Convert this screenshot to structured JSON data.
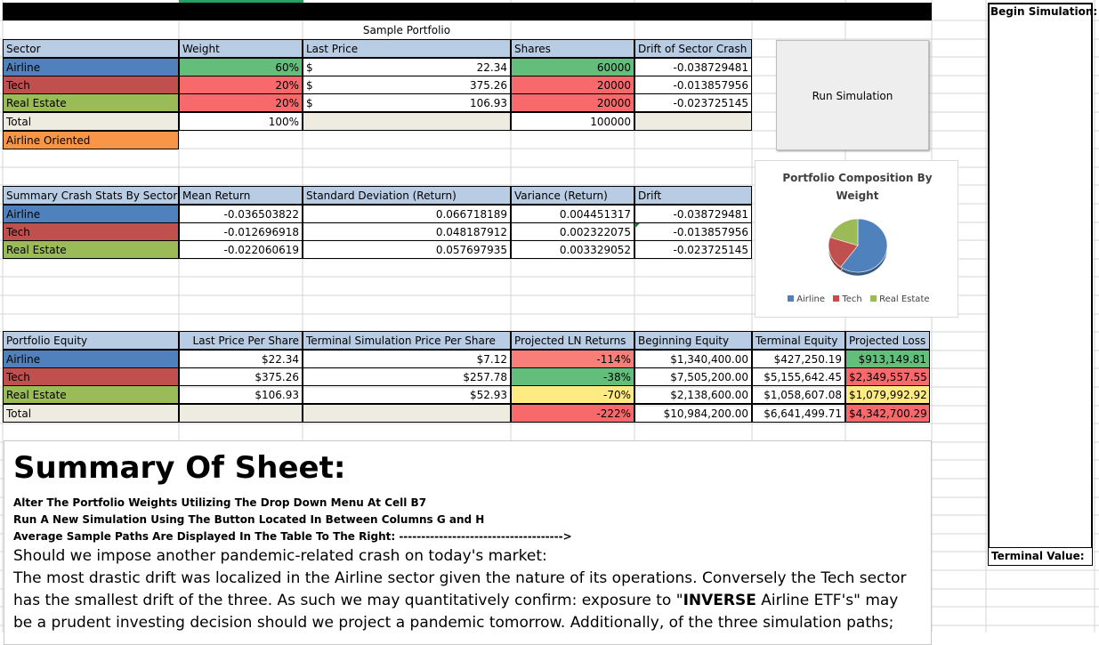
{
  "sheet": {
    "title": "Sample Portfolio"
  },
  "portfolio": {
    "headers": [
      "Sector",
      "Weight",
      "Last Price",
      "Shares",
      "Drift of Sector Crash"
    ],
    "currency_symbol": "$",
    "rows": [
      {
        "sector": "Airline",
        "weight": "60%",
        "price": "22.34",
        "shares": "60000",
        "drift": "-0.038729481"
      },
      {
        "sector": "Tech",
        "weight": "20%",
        "price": "375.26",
        "shares": "20000",
        "drift": "-0.013857956"
      },
      {
        "sector": "Real Estate",
        "weight": "20%",
        "price": "106.93",
        "shares": "20000",
        "drift": "-0.023725145"
      }
    ],
    "total": {
      "label": "Total",
      "weight": "100%",
      "shares": "100000"
    },
    "dropdown_value": "Airline Oriented"
  },
  "run_button": {
    "label": "Run Simulation"
  },
  "pie_chart": {
    "title": "Portfolio Composition By Weight",
    "legend": [
      "Airline",
      "Tech",
      "Real Estate"
    ]
  },
  "chart_data": {
    "type": "pie",
    "title": "Portfolio Composition By Weight",
    "categories": [
      "Airline",
      "Tech",
      "Real Estate"
    ],
    "values": [
      60,
      20,
      20
    ],
    "colors": [
      "#4f81bd",
      "#c0504d",
      "#9bbb59"
    ],
    "legend_position": "bottom"
  },
  "crash_stats": {
    "headers": [
      "Summary Crash Stats By Sector",
      "Mean Return",
      "Standard Deviation (Return)",
      "Variance (Return)",
      "Drift"
    ],
    "rows": [
      {
        "sector": "Airline",
        "mean": "-0.036503822",
        "std": "0.066718189",
        "var": "0.004451317",
        "drift": "-0.038729481"
      },
      {
        "sector": "Tech",
        "mean": "-0.012696918",
        "std": "0.048187912",
        "var": "0.002322075",
        "drift": "-0.013857956"
      },
      {
        "sector": "Real Estate",
        "mean": "-0.022060619",
        "std": "0.057697935",
        "var": "0.003329052",
        "drift": "-0.023725145"
      }
    ]
  },
  "equity": {
    "headers": [
      "Portfolio Equity",
      "Last Price Per Share",
      "Terminal Simulation Price Per Share",
      "Projected LN Returns",
      "Beginning Equity",
      "Terminal Equity",
      "Projected Loss"
    ],
    "rows": [
      {
        "sector": "Airline",
        "last": "$22.34",
        "terminal_price": "$7.12",
        "ln": "-114%",
        "begin": "$1,340,400.00",
        "terminal_eq": "$427,250.19",
        "loss": "$913,149.81"
      },
      {
        "sector": "Tech",
        "last": "$375.26",
        "terminal_price": "$257.78",
        "ln": "-38%",
        "begin": "$7,505,200.00",
        "terminal_eq": "$5,155,642.45",
        "loss": "$2,349,557.55"
      },
      {
        "sector": "Real Estate",
        "last": "$106.93",
        "terminal_price": "$52.93",
        "ln": "-70%",
        "begin": "$2,138,600.00",
        "terminal_eq": "$1,058,607.08",
        "loss": "$1,079,992.92"
      }
    ],
    "total": {
      "label": "Total",
      "ln": "-222%",
      "begin": "$10,984,200.00",
      "terminal_eq": "$6,641,499.71",
      "loss": "$4,342,700.29"
    }
  },
  "summary": {
    "heading": "Summary Of Sheet:",
    "bold_lines": [
      "Alter The Portfolio Weights Utilizing The Drop Down Menu At Cell B7",
      "Run A New Simulation Using The Button Located In Between Columns G and H",
      "Average Sample Paths Are Displayed In The Table To The Right: ------------------------------------->"
    ],
    "para_line1": "Should we impose another pandemic-related crash on today's market:",
    "para_line2": "The most drastic drift was localized in the Airline sector given the nature of its operations. Conversely the Tech sector",
    "para_line3_pre": "has the smallest drift of the three. As such we may quantitatively confirm: exposure to \"",
    "para_line3_bold": "INVERSE",
    "para_line3_post": " Airline ETF's\" may",
    "para_line4": "be a prudent investing decision should we project a pandemic tomorrow. Additionally, of the three simulation paths;"
  },
  "side_panel": {
    "begin_label": "Begin Simulation:",
    "terminal_label": "Terminal Value:"
  }
}
